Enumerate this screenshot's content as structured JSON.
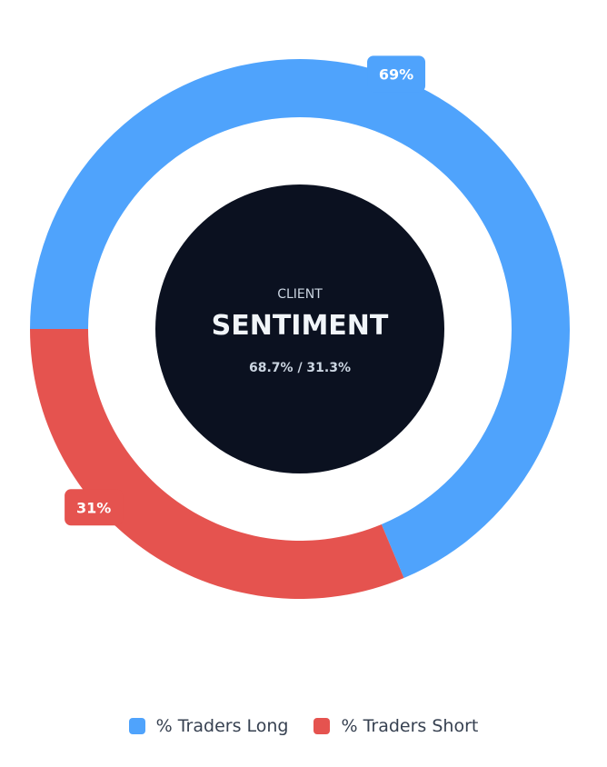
{
  "chart_data": {
    "type": "pie",
    "variant": "donut",
    "categories": [
      "% Traders Long",
      "% Traders Short"
    ],
    "values": [
      68.7,
      31.3
    ],
    "slice_labels": [
      "69%",
      "31%"
    ],
    "colors": [
      "#4fa3fc",
      "#e5534f"
    ],
    "center": {
      "kicker": "CLIENT",
      "title": "SENTIMENT",
      "detail": "68.7% / 31.3%",
      "fill": "#0b1120"
    },
    "legend": {
      "position": "bottom",
      "items": [
        {
          "label": "% Traders Long",
          "color": "#4fa3fc"
        },
        {
          "label": "% Traders Short",
          "color": "#e5534f"
        }
      ]
    }
  }
}
